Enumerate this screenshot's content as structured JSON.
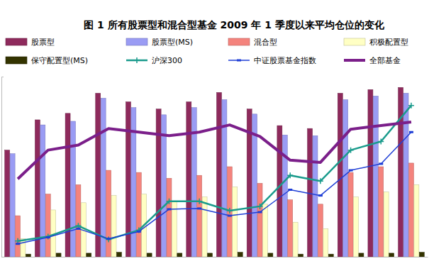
{
  "chart_data": {
    "type": "bar",
    "title": "图 1 所有股票型和混合型基金 2009 年 1 季度以来平均仓位的变化",
    "categories": [
      null,
      null,
      null,
      null,
      null,
      null,
      null,
      null,
      null,
      null,
      null,
      null,
      null,
      null
    ],
    "series": [
      {
        "name": "股票型",
        "type": "bar",
        "color": "#8e2a5c",
        "values": [
          59.2,
          76,
          79.6,
          90.8,
          86,
          82,
          86,
          91.2,
          82,
          72.8,
          71.2,
          90.8,
          92.8,
          94
        ]
      },
      {
        "name": "股票型(MS)",
        "type": "bar",
        "color": "#9a9cf4",
        "values": [
          57.2,
          73.2,
          75.2,
          88,
          82.8,
          78.8,
          82.8,
          87.2,
          79.2,
          67.6,
          67.2,
          87.2,
          89.2,
          90.8
        ]
      },
      {
        "name": "混合型",
        "type": "bar",
        "color": "#f4837d",
        "values": [
          22.8,
          34.8,
          40,
          48,
          46.8,
          43.6,
          45.2,
          50,
          40.8,
          31.6,
          29.2,
          46.8,
          50,
          52
        ]
      },
      {
        "name": "积极配置型",
        "type": "bar",
        "color": "#ffffc4",
        "values": [
          10,
          26,
          30,
          34,
          34.8,
          30.8,
          33.2,
          38.8,
          29.2,
          19.2,
          15.6,
          33.2,
          36,
          40
        ]
      },
      {
        "name": "保守配置型(MS)",
        "type": "bar",
        "color": "#333300",
        "values": [
          1.5,
          2,
          2,
          2.5,
          2,
          2,
          2,
          2.5,
          2,
          1.5,
          1.5,
          2,
          2,
          2.5
        ]
      },
      {
        "name": "沪深300",
        "type": "line",
        "color": "#1a9b8c",
        "marker": "plus",
        "line_style": "solid",
        "values": [
          8.8,
          11.2,
          17.2,
          9.6,
          14.8,
          30.8,
          30.8,
          25.6,
          28,
          45.2,
          42,
          59.2,
          64,
          84
        ]
      },
      {
        "name": "中证股票基金指数",
        "type": "line",
        "color": "#1f3fd6",
        "marker": "dash",
        "line_style": "solid",
        "values": [
          7.2,
          10.8,
          15.6,
          10,
          14,
          26.4,
          26.8,
          22.8,
          24.8,
          37.2,
          34,
          48,
          51.6,
          69.2
        ]
      },
      {
        "name": "全部基金",
        "type": "line",
        "color": "#7b1f8a",
        "marker": "none",
        "line_style": "solid",
        "values": [
          43.2,
          59.2,
          62,
          71.2,
          69.2,
          67.2,
          69.2,
          73.2,
          66.8,
          53.6,
          52.4,
          70.8,
          72.8,
          74.8
        ]
      }
    ],
    "ylim": [
      0,
      100
    ],
    "yticks": [
      0,
      100
    ],
    "grid": false,
    "legend": "top",
    "tick_labels": false
  }
}
